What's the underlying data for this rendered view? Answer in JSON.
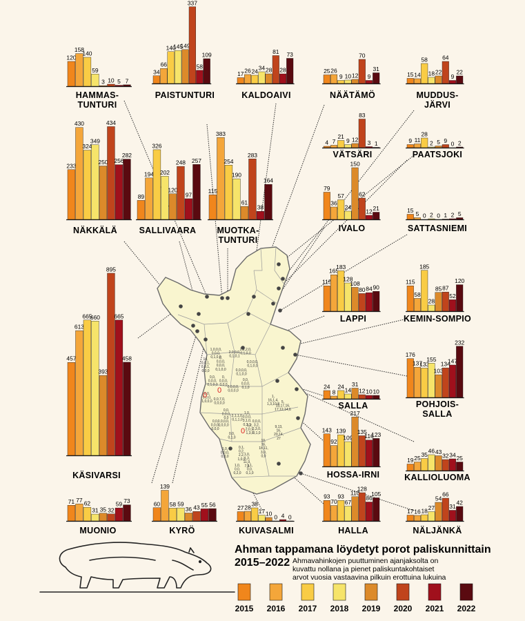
{
  "title_line1": "Ahman tappamana löydetyt porot paliskunnittain",
  "title_line2": "2015–2022",
  "note_lines": [
    "Ahmavahinkojen puuttuminen ajanjaksolta on",
    "kuvattu nollana ja pienet paliskuntakohtaiset",
    "arvot vuosia vastaavina pilkuin erottuina lukuina"
  ],
  "legend": [
    {
      "year": "2015",
      "color": "#f0861c"
    },
    {
      "year": "2016",
      "color": "#f4a63a"
    },
    {
      "year": "2017",
      "color": "#f9cc45"
    },
    {
      "year": "2018",
      "color": "#f6e46a"
    },
    {
      "year": "2019",
      "color": "#dc8a2a"
    },
    {
      "year": "2020",
      "color": "#c0441c"
    },
    {
      "year": "2021",
      "color": "#a0101c"
    },
    {
      "year": "2022",
      "color": "#5a0a10"
    }
  ],
  "chart_data": {
    "type": "bar",
    "categories": [
      "2015",
      "2016",
      "2017",
      "2018",
      "2019",
      "2020",
      "2021",
      "2022"
    ],
    "districts": [
      {
        "name": "HAMMAS-\nTUNTURI",
        "values": [
          120,
          158,
          140,
          59,
          3,
          10,
          5,
          7
        ]
      },
      {
        "name": "PAISTUNTURI",
        "values": [
          34,
          66,
          140,
          145,
          149,
          337,
          58,
          109
        ]
      },
      {
        "name": "KALDOAIVI",
        "values": [
          17,
          26,
          24,
          34,
          28,
          81,
          28,
          73
        ]
      },
      {
        "name": "NÄÄTÄMÖ",
        "values": [
          25,
          26,
          9,
          10,
          12,
          70,
          9,
          31
        ]
      },
      {
        "name": "MUDDUS-\nJÄRVI",
        "values": [
          15,
          14,
          58,
          18,
          22,
          64,
          9,
          22
        ]
      },
      {
        "name": "NÄKKÄLÄ",
        "values": [
          233,
          430,
          324,
          349,
          250,
          434,
          256,
          282
        ]
      },
      {
        "name": "SALLIVAARA",
        "values": [
          89,
          194,
          326,
          202,
          120,
          248,
          97,
          257
        ]
      },
      {
        "name": "MUOTKA-\nTUNTURI",
        "values": [
          115,
          383,
          254,
          190,
          61,
          283,
          38,
          164
        ]
      },
      {
        "name": "VÄTSÄRI",
        "values": [
          4,
          7,
          21,
          9,
          12,
          83,
          3,
          1
        ]
      },
      {
        "name": "PAATSJOKI",
        "values": [
          9,
          11,
          28,
          2,
          5,
          9,
          0,
          2
        ]
      },
      {
        "name": "IVALO",
        "values": [
          79,
          36,
          57,
          24,
          150,
          62,
          12,
          21
        ]
      },
      {
        "name": "SATTASNIEMI",
        "values": [
          15,
          5,
          0,
          2,
          0,
          1,
          2,
          5
        ]
      },
      {
        "name": "LAPPI",
        "values": [
          115,
          165,
          183,
          128,
          108,
          80,
          84,
          90
        ]
      },
      {
        "name": "KEMIN-SOMPIO",
        "values": [
          115,
          58,
          185,
          28,
          85,
          87,
          52,
          120
        ]
      },
      {
        "name": "KÄSIVARSI",
        "values": [
          457,
          613,
          665,
          660,
          393,
          895,
          665,
          458
        ]
      },
      {
        "name": "POHJOIS-\nSALLA",
        "values": [
          176,
          137,
          133,
          155,
          103,
          134,
          147,
          232
        ]
      },
      {
        "name": "SALLA",
        "values": [
          24,
          8,
          24,
          14,
          31,
          12,
          10,
          10
        ]
      },
      {
        "name": "HOSSA-IRNI",
        "values": [
          143,
          92,
          139,
          109,
          217,
          135,
          116,
          123
        ]
      },
      {
        "name": "KALLIOLUOMA",
        "values": [
          19,
          25,
          35,
          46,
          43,
          32,
          34,
          25
        ]
      },
      {
        "name": "MUONIO",
        "values": [
          71,
          77,
          62,
          31,
          35,
          32,
          59,
          73
        ]
      },
      {
        "name": "KYRÖ",
        "values": [
          60,
          139,
          58,
          59,
          36,
          43,
          55,
          56
        ]
      },
      {
        "name": "KUIVASALMI",
        "values": [
          27,
          28,
          38,
          17,
          10,
          0,
          4,
          0
        ]
      },
      {
        "name": "HALLA",
        "values": [
          93,
          70,
          93,
          67,
          110,
          128,
          86,
          105
        ]
      },
      {
        "name": "NÄLJÄNKÄ",
        "values": [
          17,
          16,
          18,
          27,
          54,
          66,
          31,
          42
        ]
      }
    ]
  },
  "map_notes": [
    "14,\n0,0,1,\n0,0,1,\n0,0,0",
    "1,0,0,0,\n0,0,0,\n0,1,0,0",
    "0,\n0,0,0,\n0,0,0,\n0,1,0,0",
    "2,2,2,0,\n0,1,0,0",
    "2,0,0,0,\n0,1,0,1",
    "0,0,\n0,0,0,\n0,1,0,0",
    "0,\n0,0,0,\n0,0,0",
    "0,0,0,0,\n0,1,0,0",
    "0,0,0,0,\n0,1,0,0",
    "0,0,\n0,0,0,\n0,1,0",
    "0,0,0,0,\n0,0,0,0",
    "0,0,7,0,\n0,0,0,0",
    "0,0,\n0,0,0,\n1,0,0,0",
    "0,0,\n0,0,0,\n0,0",
    "1,\n16,1,4,\n1,3,10,8",
    "5,\n13,17,16,\n17,12,14,6",
    "0,0,0,0,\n0,0,0,0",
    "0,0,\n0,0,0,\n0,0,0",
    "2,1,1,0,\n0,1,1,0",
    "1,0,\n0,0,0,\n3,1,0,\n0,3,1",
    "0,0,\n0,1,0",
    "1,2,\n2,0,1,\n1,3,0",
    "0,0,0,\n3,2,\n2,3,0,\n0,1,0",
    "0,1,\n0,2,\n2,2,\n1,0,0",
    "10,\n16,\n18,11,\n3,0,\n0,0",
    "9,13,\n16,\n20,14,\n27",
    "1,0,\n0,0,0,\n0,0,0",
    "1,0,\n1,3,\n11,9,\n7,3",
    "1,0,\n0,0,\n0,2,0",
    "1,1,\n0,0,\n0,1,0"
  ],
  "map_zero": "0"
}
